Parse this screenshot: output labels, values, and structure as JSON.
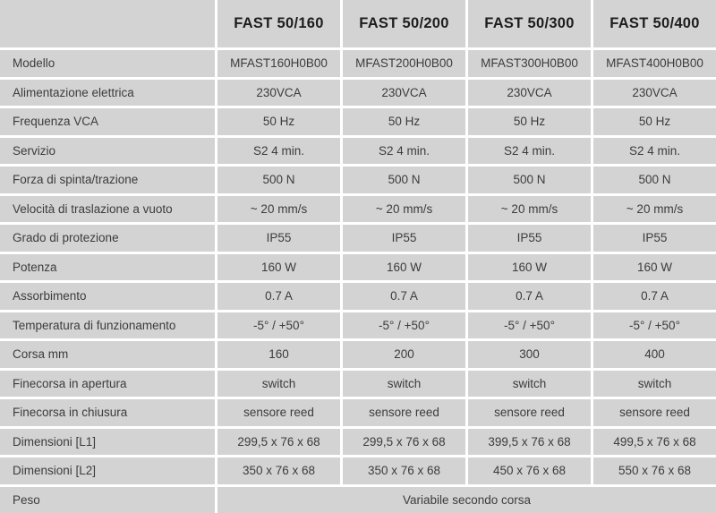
{
  "table": {
    "corner_label": "",
    "columns": [
      "FAST 50/160",
      "FAST 50/200",
      "FAST 50/300",
      "FAST 50/400"
    ],
    "rows": [
      {
        "label": "Modello",
        "values": [
          "MFAST160H0B00",
          "MFAST200H0B00",
          "MFAST300H0B00",
          "MFAST400H0B00"
        ]
      },
      {
        "label": "Alimentazione elettrica",
        "values": [
          "230VCA",
          "230VCA",
          "230VCA",
          "230VCA"
        ]
      },
      {
        "label": "Frequenza VCA",
        "values": [
          "50 Hz",
          "50 Hz",
          "50 Hz",
          "50 Hz"
        ]
      },
      {
        "label": "Servizio",
        "values": [
          "S2 4 min.",
          "S2 4 min.",
          "S2 4 min.",
          "S2 4 min."
        ]
      },
      {
        "label": "Forza di spinta/trazione",
        "values": [
          "500 N",
          "500 N",
          "500 N",
          "500 N"
        ]
      },
      {
        "label": "Velocità di traslazione a vuoto",
        "values": [
          "~ 20 mm/s",
          "~ 20 mm/s",
          "~ 20 mm/s",
          "~ 20 mm/s"
        ]
      },
      {
        "label": "Grado di protezione",
        "values": [
          "IP55",
          "IP55",
          "IP55",
          "IP55"
        ]
      },
      {
        "label": "Potenza",
        "values": [
          "160 W",
          "160 W",
          "160 W",
          "160 W"
        ]
      },
      {
        "label": "Assorbimento",
        "values": [
          "0.7 A",
          "0.7 A",
          "0.7 A",
          "0.7 A"
        ]
      },
      {
        "label": "Temperatura di funzionamento",
        "values": [
          "-5° / +50°",
          "-5° / +50°",
          "-5° / +50°",
          "-5° / +50°"
        ]
      },
      {
        "label": "Corsa mm",
        "values": [
          "160",
          "200",
          "300",
          "400"
        ]
      },
      {
        "label": "Finecorsa in apertura",
        "values": [
          "switch",
          "switch",
          "switch",
          "switch"
        ]
      },
      {
        "label": "Finecorsa in chiusura",
        "values": [
          "sensore reed",
          "sensore reed",
          "sensore reed",
          "sensore reed"
        ]
      },
      {
        "label": "Dimensioni [L1]",
        "values": [
          "299,5 x 76 x 68",
          "299,5 x 76 x 68",
          "399,5 x 76 x 68",
          "499,5 x 76 x 68"
        ]
      },
      {
        "label": "Dimensioni [L2]",
        "values": [
          "350 x 76 x 68",
          "350 x 76 x 68",
          "450 x 76 x 68",
          "550 x 76 x 68"
        ]
      },
      {
        "label": "Peso",
        "span_value": "Variabile secondo corsa"
      }
    ],
    "colors": {
      "cell_bg": "#d3d3d3",
      "separator": "#ffffff",
      "text": "#3c3c3c",
      "header_text": "#1d1d1d"
    }
  }
}
